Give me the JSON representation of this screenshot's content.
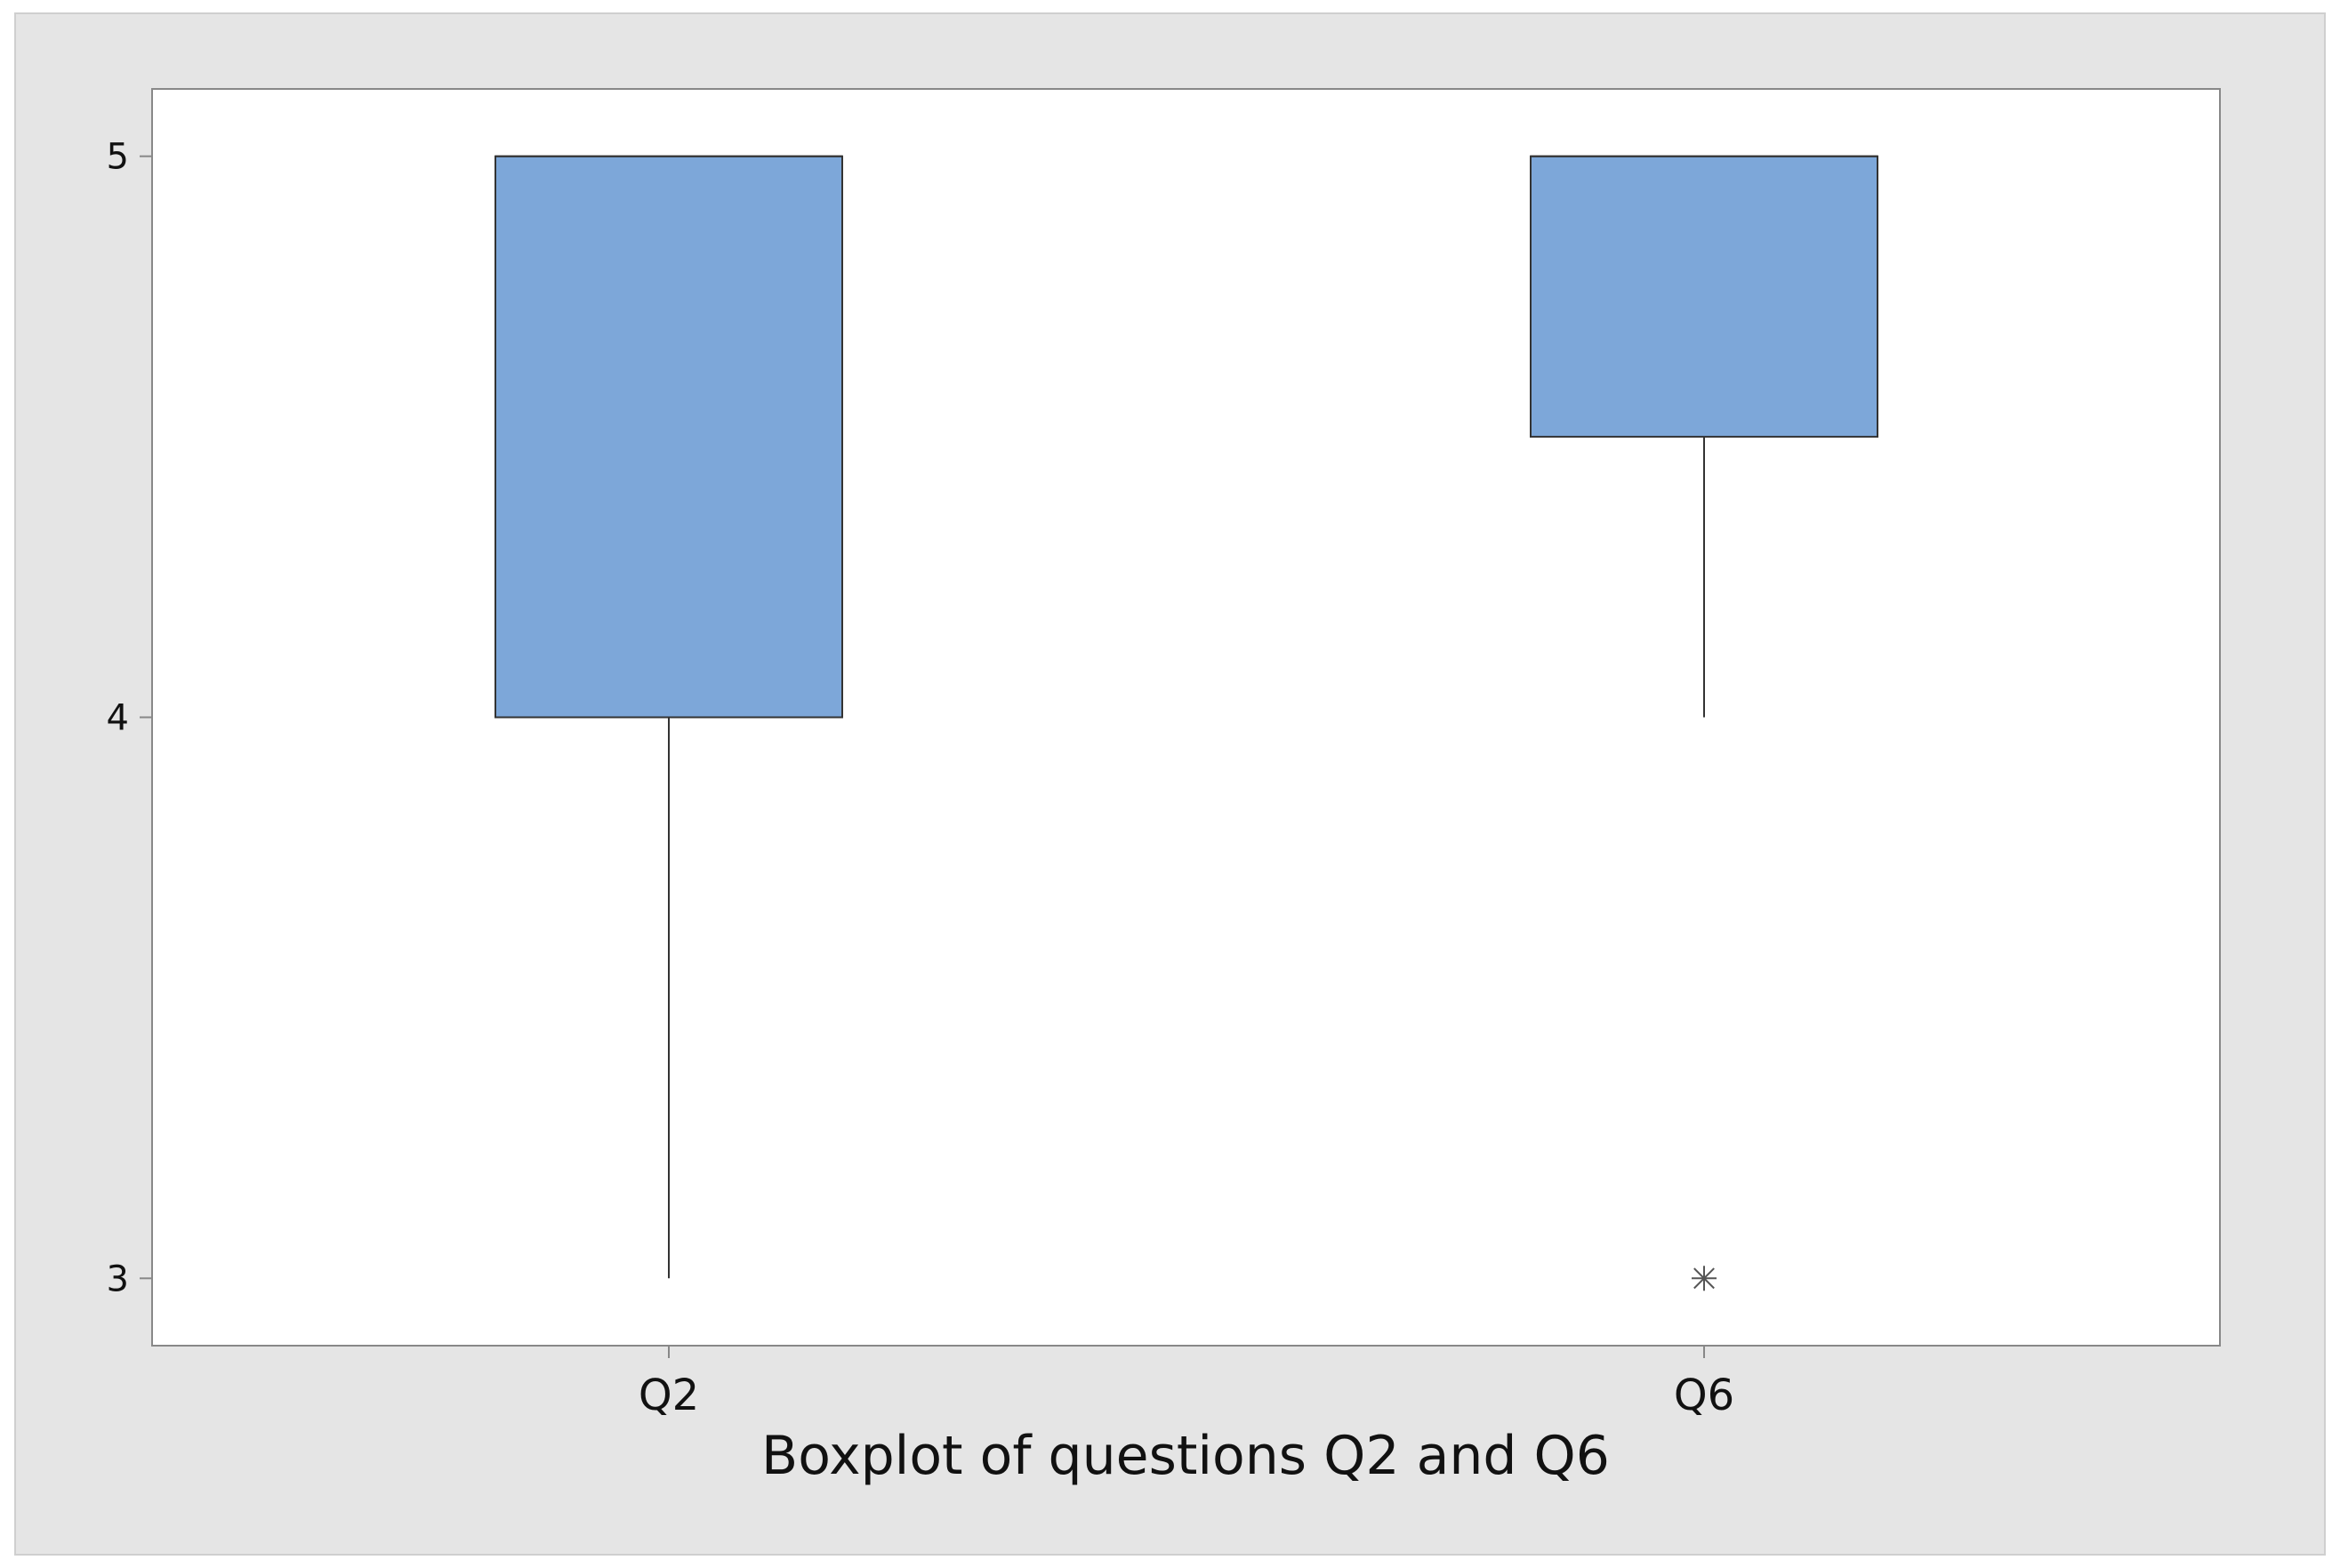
{
  "colors": {
    "outer_background": "#e5e5e5",
    "plot_background": "#ffffff",
    "box_fill": "#7da7d9",
    "box_stroke": "#333333",
    "axis_color": "#888888",
    "text_color": "#111111"
  },
  "chart_data": {
    "type": "boxplot",
    "title": "Boxplot of questions Q2 and Q6",
    "xlabel": "",
    "ylabel": "",
    "ylim": [
      2.88,
      5.12
    ],
    "yticks": [
      3,
      4,
      5
    ],
    "ytick_labels": [
      "3",
      "4",
      "5"
    ],
    "grid": false,
    "legend": "none",
    "categories": [
      "Q2",
      "Q6"
    ],
    "boxes": [
      {
        "category": "Q2",
        "whisker_low": 3,
        "q1": 4,
        "median": 5,
        "q3": 5,
        "whisker_high": 5,
        "outliers": []
      },
      {
        "category": "Q6",
        "whisker_low": 4,
        "q1": 4.5,
        "median": 5,
        "q3": 5,
        "whisker_high": 5,
        "outliers": [
          3
        ]
      }
    ]
  }
}
